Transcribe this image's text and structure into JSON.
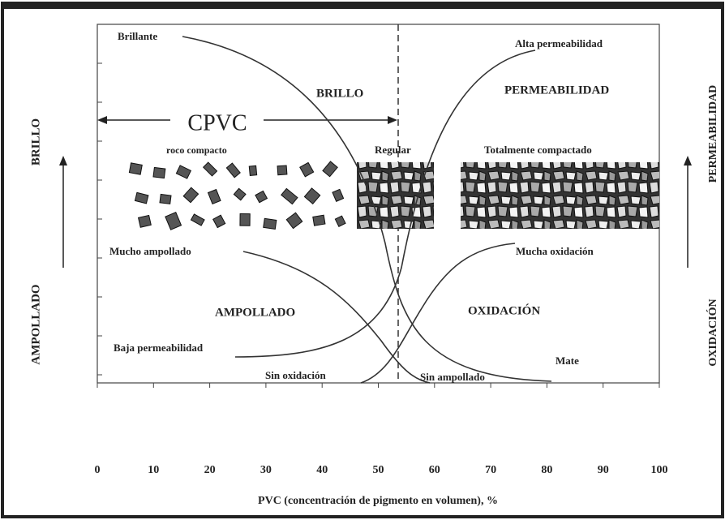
{
  "axis": {
    "label": "PVC (concentración de pigmento en volumen), %",
    "ticks": [
      0,
      10,
      20,
      30,
      40,
      50,
      60,
      70,
      80,
      90,
      100
    ]
  },
  "side_labels": {
    "left_top": "BRILLO",
    "left_bottom": "AMPOLLADO",
    "right_top": "PERMEABILIDAD",
    "right_bottom": "OXIDACIÓN"
  },
  "annotations": {
    "brillante": "Brillante",
    "alta_permeabilidad": "Alta permeabilidad",
    "brillo": "BRILLO",
    "permeabilidad": "PERMEABILIDAD",
    "cpvc": "CPVC",
    "poco_compacto": "roco compacto",
    "regular": "Regular",
    "totalmente_compactado": "Totalmente compactado",
    "mucho_ampollado": "Mucho ampollado",
    "mucha_oxidacion": "Mucha oxidación",
    "ampollado": "AMPOLLADO",
    "oxidacion": "OXIDACIÓN",
    "baja_permeabilidad": "Baja permeabilidad",
    "sin_oxidacion": "Sin oxidación",
    "sin_ampollado": "Sin ampollado",
    "mate": "Mate"
  }
}
